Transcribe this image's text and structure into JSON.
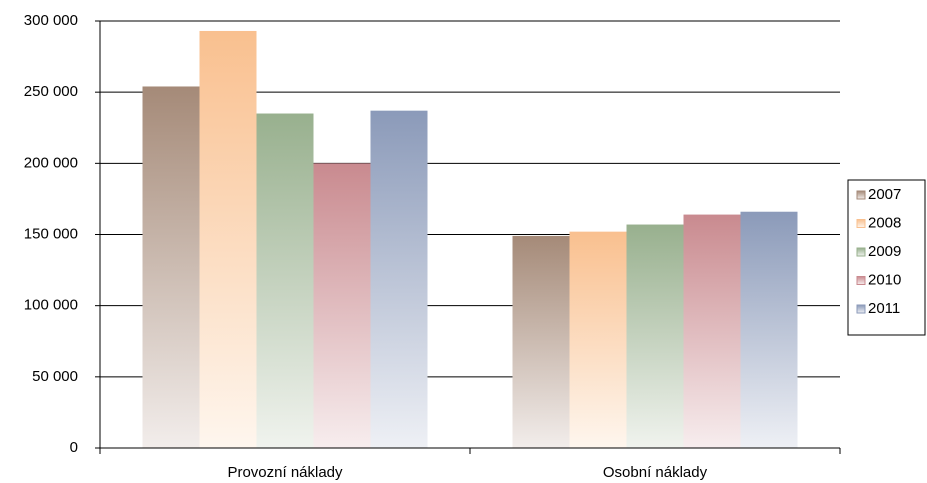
{
  "chart_data": {
    "type": "bar",
    "categories": [
      "Provozní náklady",
      "Osobní náklady"
    ],
    "series": [
      {
        "name": "2007",
        "color": "#a58a78",
        "values": [
          254000,
          149000
        ]
      },
      {
        "name": "2008",
        "color": "#f9c08f",
        "values": [
          293000,
          152000
        ]
      },
      {
        "name": "2009",
        "color": "#98b08e",
        "values": [
          235000,
          157000
        ]
      },
      {
        "name": "2010",
        "color": "#c98a8f",
        "values": [
          200000,
          164000
        ]
      },
      {
        "name": "2011",
        "color": "#8b9ab9",
        "values": [
          237000,
          166000
        ]
      }
    ],
    "ylim": [
      0,
      300000
    ],
    "yticks": [
      0,
      {
        "value": 50000,
        "label": "50 000"
      },
      {
        "value": 100000,
        "label": "100 000"
      },
      {
        "value": 150000,
        "label": "150 000"
      },
      {
        "value": 200000,
        "label": "200 000"
      },
      {
        "value": 250000,
        "label": "250 000"
      },
      {
        "value": 300000,
        "label": "300 000"
      }
    ],
    "grid": true,
    "legend": "right"
  }
}
